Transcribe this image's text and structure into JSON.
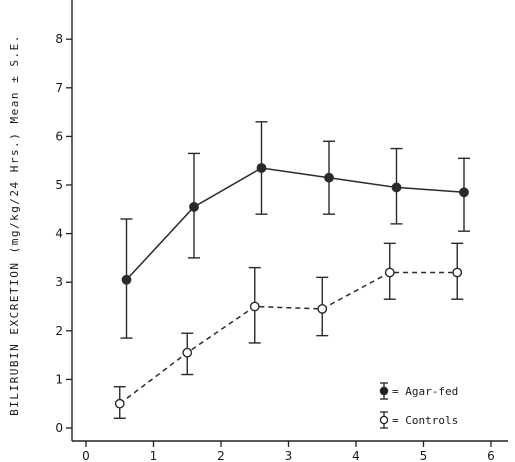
{
  "chart_data": {
    "type": "line",
    "title": "",
    "xlabel": "",
    "ylabel": "BILIRUBIN EXCRETION (mg/kg/24 Hrs.) Mean ± S.E.",
    "xlim": [
      0,
      6.25
    ],
    "ylim": [
      0,
      9
    ],
    "x_ticks": [
      0,
      1,
      2,
      3,
      4,
      5,
      6
    ],
    "y_ticks": [
      1,
      2,
      3,
      4,
      5,
      6,
      7,
      8
    ],
    "grid": false,
    "legend_position": "bottom-right",
    "series": [
      {
        "name": "Agar-fed",
        "marker": "filled-circle",
        "line_style": "solid",
        "color": "#2a2a2a",
        "points": [
          {
            "x": 0.6,
            "y": 3.05,
            "err_low": 1.85,
            "err_high": 4.3
          },
          {
            "x": 1.6,
            "y": 4.55,
            "err_low": 3.5,
            "err_high": 5.65
          },
          {
            "x": 2.6,
            "y": 5.35,
            "err_low": 4.4,
            "err_high": 6.3
          },
          {
            "x": 3.6,
            "y": 5.15,
            "err_low": 4.4,
            "err_high": 5.9
          },
          {
            "x": 4.6,
            "y": 4.95,
            "err_low": 4.2,
            "err_high": 5.75
          },
          {
            "x": 5.6,
            "y": 4.85,
            "err_low": 4.05,
            "err_high": 5.55
          }
        ]
      },
      {
        "name": "Controls",
        "marker": "open-circle",
        "line_style": "dashed",
        "color": "#2a2a2a",
        "points": [
          {
            "x": 0.5,
            "y": 0.5,
            "err_low": 0.2,
            "err_high": 0.85
          },
          {
            "x": 1.5,
            "y": 1.55,
            "err_low": 1.1,
            "err_high": 1.95
          },
          {
            "x": 2.5,
            "y": 2.5,
            "err_low": 1.75,
            "err_high": 3.3
          },
          {
            "x": 3.5,
            "y": 2.45,
            "err_low": 1.9,
            "err_high": 3.1
          },
          {
            "x": 4.5,
            "y": 3.2,
            "err_low": 2.65,
            "err_high": 3.8
          },
          {
            "x": 5.5,
            "y": 3.2,
            "err_low": 2.65,
            "err_high": 3.8
          }
        ]
      }
    ],
    "legend": [
      {
        "label": "= Agar-fed",
        "marker": "filled-circle"
      },
      {
        "label": "= Controls",
        "marker": "open-circle"
      }
    ]
  }
}
